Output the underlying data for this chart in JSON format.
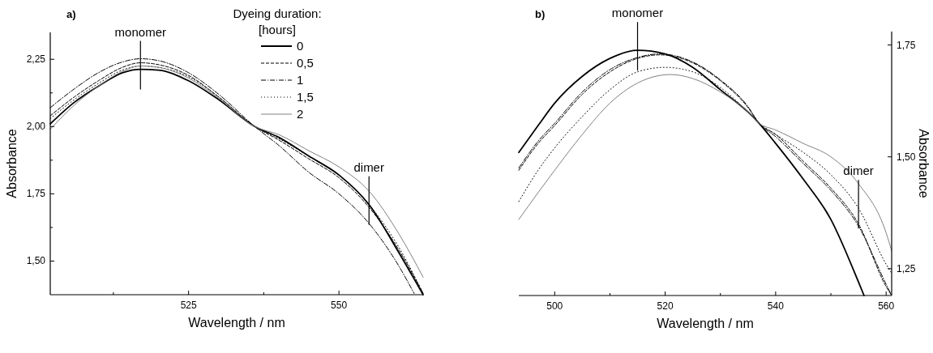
{
  "chart_data": [
    {
      "type": "line",
      "title": "a)",
      "xlabel": "Wavelength / nm",
      "ylabel": "Absorbance",
      "legend_title": "Dyeing duration:\n[hours]",
      "legend": "top right",
      "xlim": [
        502,
        564
      ],
      "ylim": [
        1.375,
        2.35
      ],
      "xticks": [
        {
          "value": 512.5,
          "label": null
        },
        525,
        {
          "value": 537.5,
          "label": null
        },
        550
      ],
      "yticks": [
        {
          "value": 1.5,
          "label": "1,50"
        },
        {
          "value": 1.625,
          "label": null
        },
        {
          "value": 1.75,
          "label": "1,75"
        },
        {
          "value": 1.875,
          "label": null
        },
        {
          "value": 2,
          "label": "2,00"
        },
        {
          "value": 2.125,
          "label": null
        },
        {
          "value": 2.25,
          "label": "2,25"
        }
      ],
      "x": [
        502,
        506,
        510,
        514,
        517,
        520,
        525,
        530,
        536,
        540,
        545,
        550,
        555,
        560,
        564
      ],
      "series": [
        {
          "name": "0",
          "color": "#000000",
          "line_style": "solid",
          "values": [
            2.01,
            2.09,
            2.15,
            2.2,
            2.213,
            2.21,
            2.17,
            2.1,
            2.0,
            1.96,
            1.89,
            1.82,
            1.71,
            1.53,
            1.375
          ]
        },
        {
          "name": "0,5",
          "color": "#000000",
          "line_style": "dashed",
          "values": [
            2.04,
            2.11,
            2.17,
            2.22,
            2.237,
            2.23,
            2.19,
            2.11,
            2.0,
            1.95,
            1.88,
            1.81,
            1.7,
            1.54,
            1.38
          ]
        },
        {
          "name": "1",
          "color": "#000000",
          "line_style": "dashdot",
          "x": [
            502,
            506,
            510,
            514,
            517,
            520,
            525,
            530,
            536,
            540,
            545,
            550,
            555,
            560,
            562.5
          ],
          "values": [
            2.07,
            2.14,
            2.2,
            2.24,
            2.252,
            2.245,
            2.2,
            2.12,
            2.0,
            1.93,
            1.83,
            1.75,
            1.64,
            1.48,
            1.38
          ]
        },
        {
          "name": "1,5",
          "color": "#000000",
          "line_style": "dotted",
          "values": [
            2.03,
            2.1,
            2.16,
            2.21,
            2.225,
            2.22,
            2.185,
            2.11,
            2.0,
            1.955,
            1.89,
            1.82,
            1.71,
            1.55,
            1.38
          ]
        },
        {
          "name": "2",
          "color": "#808080",
          "line_style": "solid",
          "values": [
            1.99,
            2.08,
            2.15,
            2.205,
            2.225,
            2.22,
            2.18,
            2.105,
            2.0,
            1.97,
            1.91,
            1.85,
            1.76,
            1.6,
            1.44
          ]
        }
      ],
      "annotations": [
        {
          "text": "monomer",
          "x": 517,
          "y": 2.213
        },
        {
          "text": "dimer",
          "x": 555,
          "y": 1.71
        }
      ]
    },
    {
      "type": "line",
      "title": "b)",
      "xlabel": "Wavelength / nm",
      "ylabel": "Absorbance",
      "xlim": [
        493.5,
        561
      ],
      "ylim": [
        1.19,
        1.78
      ],
      "xticks": [
        500,
        {
          "value": 510,
          "label": null
        },
        520,
        {
          "value": 530,
          "label": null
        },
        540,
        {
          "value": 550,
          "label": null
        },
        560
      ],
      "yticks": [
        {
          "value": 1.25,
          "label": "1,25"
        },
        {
          "value": 1.5,
          "label": "1,50"
        },
        {
          "value": 1.75,
          "label": "1,75"
        }
      ],
      "series": [
        {
          "color": "#000000",
          "line_style": "solid",
          "x": [
            493.5,
            497,
            500,
            505,
            510,
            515,
            520,
            525,
            530,
            535,
            537,
            540,
            545,
            550,
            555,
            556
          ],
          "values": [
            1.51,
            1.57,
            1.62,
            1.68,
            1.72,
            1.738,
            1.73,
            1.7,
            1.65,
            1.6,
            1.575,
            1.53,
            1.45,
            1.36,
            1.22,
            1.19
          ]
        },
        {
          "color": "#000000",
          "line_style": "dashed",
          "x": [
            493.5,
            497,
            500,
            505,
            510,
            515,
            519,
            525,
            530,
            535,
            537,
            540,
            545,
            550,
            555,
            560,
            561
          ],
          "values": [
            1.47,
            1.53,
            1.57,
            1.64,
            1.69,
            1.72,
            1.728,
            1.71,
            1.67,
            1.61,
            1.575,
            1.55,
            1.49,
            1.43,
            1.35,
            1.21,
            1.19
          ]
        },
        {
          "color": "#000000",
          "line_style": "dashdot",
          "x": [
            493.5,
            497,
            500,
            505,
            510,
            515,
            519,
            525,
            530,
            535,
            537,
            540,
            545,
            550,
            555,
            560,
            561
          ],
          "values": [
            1.475,
            1.535,
            1.575,
            1.645,
            1.695,
            1.722,
            1.73,
            1.712,
            1.672,
            1.612,
            1.575,
            1.545,
            1.485,
            1.425,
            1.345,
            1.215,
            1.19
          ]
        },
        {
          "color": "#000000",
          "line_style": "dotted",
          "x": [
            493.5,
            497,
            500,
            505,
            510,
            515,
            520,
            525,
            530,
            535,
            537,
            540,
            545,
            550,
            555,
            560,
            561
          ],
          "values": [
            1.4,
            1.47,
            1.52,
            1.59,
            1.65,
            1.69,
            1.7,
            1.69,
            1.655,
            1.6,
            1.575,
            1.55,
            1.51,
            1.46,
            1.385,
            1.26,
            1.24
          ]
        },
        {
          "color": "#808080",
          "line_style": "solid",
          "x": [
            493.5,
            497,
            500,
            505,
            510,
            515,
            521,
            525,
            530,
            535,
            537,
            540,
            545,
            550,
            555,
            560,
            561
          ],
          "values": [
            1.36,
            1.42,
            1.47,
            1.55,
            1.62,
            1.665,
            1.684,
            1.675,
            1.645,
            1.6,
            1.575,
            1.56,
            1.53,
            1.5,
            1.44,
            1.33,
            1.29
          ]
        }
      ],
      "annotations": [
        {
          "text": "monomer",
          "x": 515,
          "y": 1.738
        },
        {
          "text": "dimer",
          "x": 555,
          "y": 1.385
        }
      ]
    }
  ]
}
